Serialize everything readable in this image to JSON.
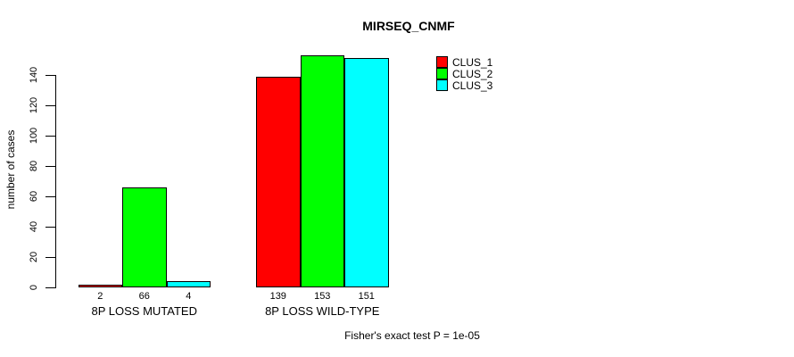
{
  "chart_data": {
    "type": "bar",
    "title": "MIRSEQ_CNMF",
    "ylabel": "number of cases",
    "xlabel": "",
    "caption": "Fisher's exact test P = 1e-05",
    "ylim": [
      0,
      140
    ],
    "yticks": [
      0,
      20,
      40,
      60,
      80,
      100,
      120,
      140
    ],
    "grid": false,
    "legend_position": "top-right",
    "categories": [
      "8P LOSS MUTATED",
      "8P LOSS WILD-TYPE"
    ],
    "series": [
      {
        "name": "CLUS_1",
        "color": "#ff0000",
        "values": [
          2,
          139
        ]
      },
      {
        "name": "CLUS_2",
        "color": "#00ff00",
        "values": [
          66,
          153
        ]
      },
      {
        "name": "CLUS_3",
        "color": "#00ffff",
        "values": [
          4,
          151
        ]
      }
    ],
    "bar_outline_color": "#000000",
    "axis_color": "#000000"
  }
}
